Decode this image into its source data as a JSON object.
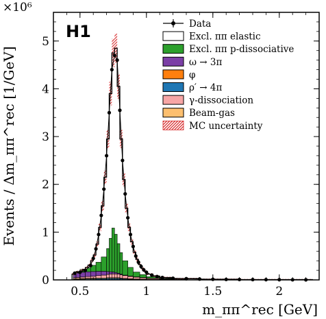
{
  "chart_data": {
    "type": "histogram",
    "logo": "H1",
    "exponent_label": "×10⁶",
    "xlabel": "m_ππ^rec [GeV]",
    "ylabel": "Events / Δm_ππ^rec [1/GeV]",
    "xlim": [
      0.3,
      2.3
    ],
    "ylim": [
      0,
      5.6
    ],
    "x_ticks": [
      0.5,
      1,
      1.5,
      2
    ],
    "x_tick_labels": [
      "0.5",
      "1",
      "1.5",
      "2"
    ],
    "y_ticks": [
      0,
      1,
      2,
      3,
      4,
      5
    ],
    "y_tick_labels": [
      "0",
      "1",
      "2",
      "3",
      "4",
      "5"
    ],
    "grid": false,
    "legend_position": "top-right",
    "legend": [
      {
        "label": "Data",
        "style": "marker",
        "color": "#000000"
      },
      {
        "label": "Excl. ππ elastic",
        "style": "box",
        "color": "#ffffff"
      },
      {
        "label": "Excl. ππ p-dissociative",
        "style": "box",
        "color": "#2ca02c"
      },
      {
        "label": "ω → 3π",
        "style": "box",
        "color": "#7b3fa6"
      },
      {
        "label": "φ",
        "style": "box",
        "color": "#ff7f0e"
      },
      {
        "label": "ρ′ → 4π",
        "style": "box",
        "color": "#1f77b4"
      },
      {
        "label": "γ-dissociation",
        "style": "box",
        "color": "#f7a6a6"
      },
      {
        "label": "Beam-gas",
        "style": "box",
        "color": "#fdbf6f"
      },
      {
        "label": "MC uncertainty",
        "style": "hatch",
        "color": "#d62728"
      }
    ],
    "data_points": [
      {
        "x": 0.46,
        "y": 0.14
      },
      {
        "x": 0.5,
        "y": 0.16
      },
      {
        "x": 0.54,
        "y": 0.2
      },
      {
        "x": 0.58,
        "y": 0.3
      },
      {
        "x": 0.6,
        "y": 0.45
      },
      {
        "x": 0.62,
        "y": 0.65
      },
      {
        "x": 0.64,
        "y": 0.95
      },
      {
        "x": 0.66,
        "y": 1.35
      },
      {
        "x": 0.68,
        "y": 1.9
      },
      {
        "x": 0.7,
        "y": 2.6
      },
      {
        "x": 0.72,
        "y": 3.5
      },
      {
        "x": 0.74,
        "y": 4.4
      },
      {
        "x": 0.76,
        "y": 4.7
      },
      {
        "x": 0.78,
        "y": 4.6
      },
      {
        "x": 0.8,
        "y": 3.55
      },
      {
        "x": 0.82,
        "y": 2.5
      },
      {
        "x": 0.84,
        "y": 1.8
      },
      {
        "x": 0.86,
        "y": 1.3
      },
      {
        "x": 0.88,
        "y": 0.95
      },
      {
        "x": 0.9,
        "y": 0.7
      },
      {
        "x": 0.92,
        "y": 0.5
      },
      {
        "x": 0.94,
        "y": 0.37
      },
      {
        "x": 0.96,
        "y": 0.28
      },
      {
        "x": 0.98,
        "y": 0.21
      },
      {
        "x": 1.0,
        "y": 0.16
      },
      {
        "x": 1.04,
        "y": 0.1
      },
      {
        "x": 1.08,
        "y": 0.07
      },
      {
        "x": 1.12,
        "y": 0.05
      },
      {
        "x": 1.2,
        "y": 0.035
      },
      {
        "x": 1.3,
        "y": 0.025
      },
      {
        "x": 1.4,
        "y": 0.018
      },
      {
        "x": 1.5,
        "y": 0.013
      },
      {
        "x": 1.6,
        "y": 0.01
      },
      {
        "x": 1.7,
        "y": 0.008
      },
      {
        "x": 1.8,
        "y": 0.006
      },
      {
        "x": 1.9,
        "y": 0.005
      },
      {
        "x": 2.0,
        "y": 0.004
      },
      {
        "x": 2.1,
        "y": 0.003
      },
      {
        "x": 2.2,
        "y": 0.002
      }
    ],
    "stack": {
      "bins": [
        [
          0.45,
          0.47,
          0.02,
          0.08,
          0.02,
          0.015,
          0.01
        ],
        [
          0.47,
          0.5,
          0.04,
          0.09,
          0.025,
          0.015,
          0.012
        ],
        [
          0.5,
          0.54,
          0.06,
          0.1,
          0.03,
          0.015,
          0.015
        ],
        [
          0.54,
          0.58,
          0.08,
          0.1,
          0.035,
          0.015,
          0.02
        ],
        [
          0.58,
          0.62,
          0.13,
          0.1,
          0.04,
          0.015,
          0.02
        ],
        [
          0.62,
          0.66,
          0.19,
          0.09,
          0.05,
          0.015,
          0.025
        ],
        [
          0.66,
          0.7,
          0.3,
          0.08,
          0.06,
          0.015,
          0.025
        ],
        [
          0.7,
          0.72,
          0.48,
          0.06,
          0.07,
          0.015,
          0.03
        ],
        [
          0.72,
          0.74,
          0.7,
          0.05,
          0.075,
          0.015,
          0.03
        ],
        [
          0.74,
          0.76,
          0.92,
          0.04,
          0.08,
          0.015,
          0.03
        ],
        [
          0.76,
          0.78,
          0.8,
          0.03,
          0.08,
          0.015,
          0.03
        ],
        [
          0.78,
          0.8,
          0.62,
          0.02,
          0.075,
          0.015,
          0.03
        ],
        [
          0.8,
          0.82,
          0.45,
          0.015,
          0.07,
          0.012,
          0.025
        ],
        [
          0.82,
          0.86,
          0.3,
          0.01,
          0.06,
          0.01,
          0.02
        ],
        [
          0.86,
          0.9,
          0.18,
          0.008,
          0.05,
          0.008,
          0.015
        ],
        [
          0.9,
          0.95,
          0.1,
          0.006,
          0.04,
          0.006,
          0.012
        ],
        [
          0.95,
          1.0,
          0.06,
          0.005,
          0.03,
          0.005,
          0.01
        ],
        [
          1.0,
          1.1,
          0.03,
          0.004,
          0.02,
          0.004,
          0.008
        ],
        [
          1.1,
          1.3,
          0.01,
          0.003,
          0.01,
          0.003,
          0.005
        ]
      ],
      "columns": [
        "x_low",
        "x_high",
        "excl_pipi_p_dissociative",
        "omega_to_3pi",
        "gamma_dissociation",
        "beam_gas",
        "rho_prime_to_4pi"
      ]
    },
    "mc_total": [
      [
        0.44,
        0.46,
        0.12
      ],
      [
        0.46,
        0.48,
        0.15
      ],
      [
        0.48,
        0.5,
        0.17
      ],
      [
        0.5,
        0.52,
        0.19
      ],
      [
        0.52,
        0.54,
        0.22
      ],
      [
        0.54,
        0.56,
        0.26
      ],
      [
        0.56,
        0.58,
        0.31
      ],
      [
        0.58,
        0.6,
        0.4
      ],
      [
        0.6,
        0.62,
        0.52
      ],
      [
        0.62,
        0.64,
        0.75
      ],
      [
        0.64,
        0.66,
        1.1
      ],
      [
        0.66,
        0.68,
        1.55
      ],
      [
        0.68,
        0.7,
        2.15
      ],
      [
        0.7,
        0.72,
        2.95
      ],
      [
        0.72,
        0.74,
        3.9
      ],
      [
        0.74,
        0.76,
        4.75
      ],
      [
        0.76,
        0.78,
        4.85
      ],
      [
        0.78,
        0.8,
        4.05
      ],
      [
        0.8,
        0.82,
        2.95
      ],
      [
        0.82,
        0.84,
        2.1
      ],
      [
        0.84,
        0.86,
        1.5
      ],
      [
        0.86,
        0.88,
        1.1
      ],
      [
        0.88,
        0.9,
        0.8
      ],
      [
        0.9,
        0.92,
        0.58
      ],
      [
        0.92,
        0.94,
        0.43
      ],
      [
        0.94,
        0.96,
        0.32
      ],
      [
        0.96,
        0.98,
        0.24
      ],
      [
        0.98,
        1.0,
        0.18
      ],
      [
        1.0,
        1.05,
        0.12
      ],
      [
        1.05,
        1.1,
        0.08
      ],
      [
        1.1,
        1.2,
        0.05
      ],
      [
        1.2,
        1.4,
        0.028
      ],
      [
        1.4,
        1.7,
        0.014
      ],
      [
        1.7,
        2.25,
        0.006
      ]
    ]
  }
}
